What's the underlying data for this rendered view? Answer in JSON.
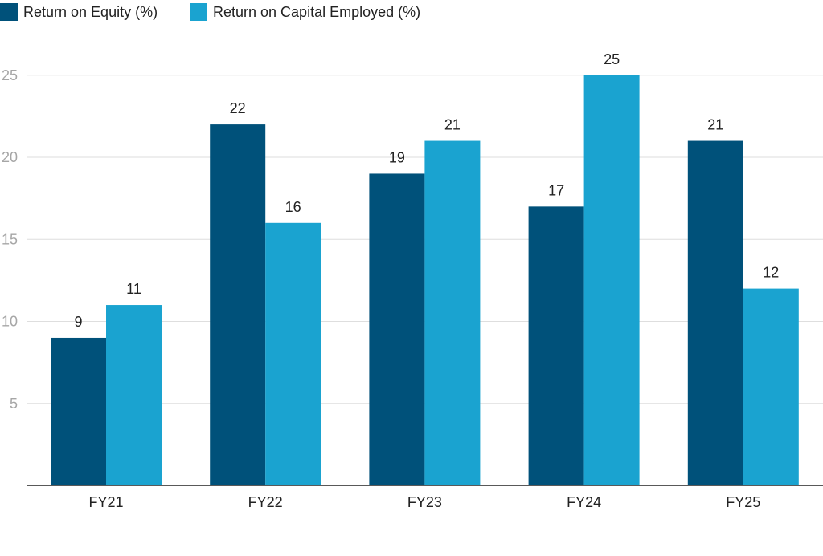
{
  "chart_data": {
    "type": "bar",
    "title": "",
    "xlabel": "",
    "ylabel": "",
    "categories": [
      "FY21",
      "FY22",
      "FY23",
      "FY24",
      "FY25"
    ],
    "series": [
      {
        "name": "Return on Equity (%)",
        "color": "#00517a",
        "values": [
          9,
          22,
          19,
          17,
          21
        ]
      },
      {
        "name": "Return on Capital Employed (%)",
        "color": "#1aa3d0",
        "values": [
          11,
          16,
          21,
          25,
          12
        ]
      }
    ],
    "ylim": [
      0,
      27.5
    ],
    "yticks": [
      5,
      10,
      15,
      20,
      25
    ],
    "grid": true,
    "legend_position": "top-left"
  }
}
